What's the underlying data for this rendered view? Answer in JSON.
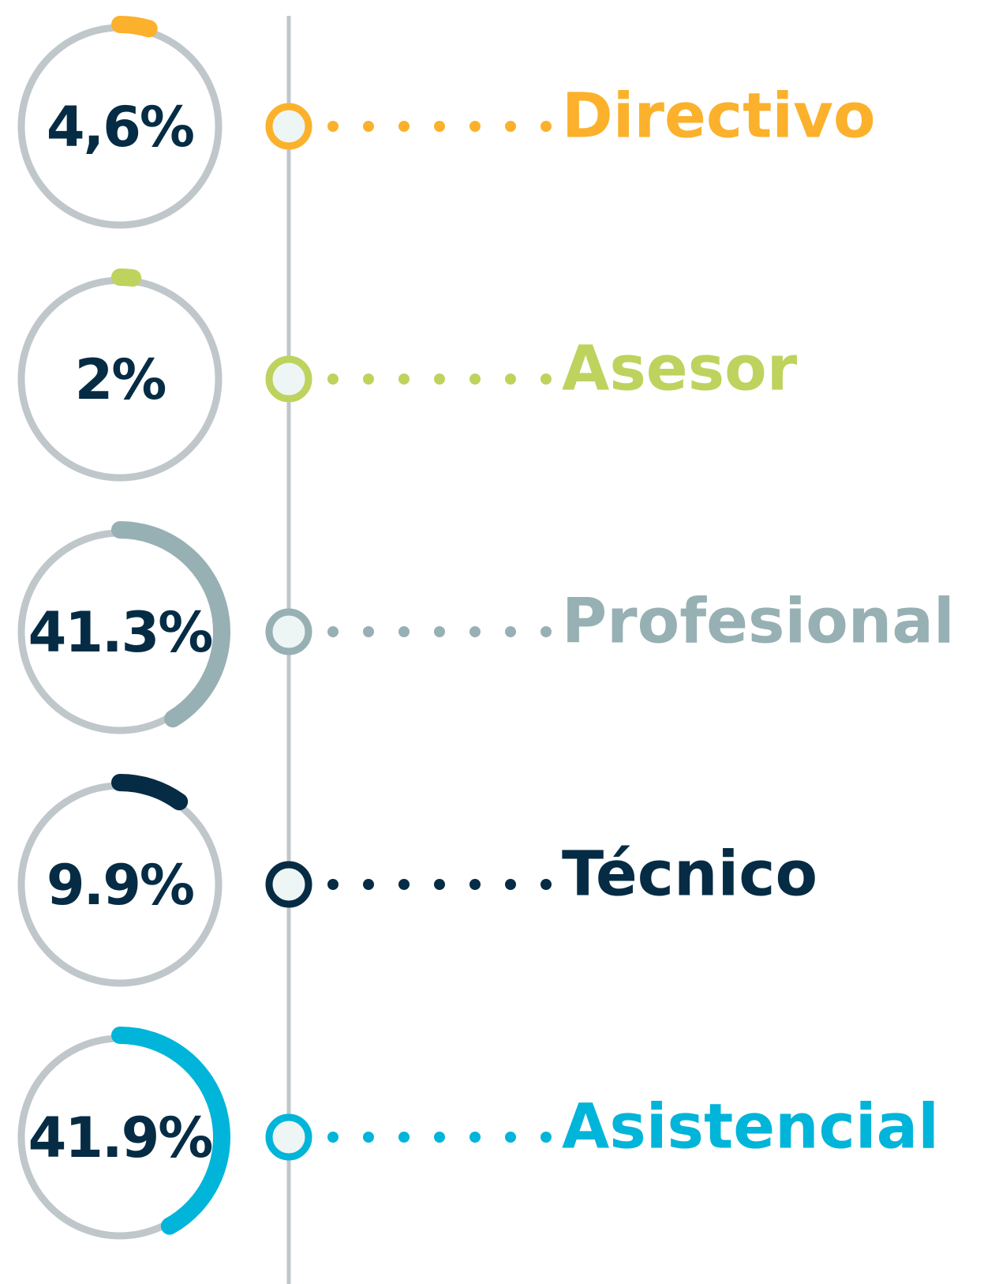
{
  "chart_data": {
    "type": "radial",
    "categories": [
      "Directivo",
      "Asesor",
      "Profesional",
      "Técnico",
      "Asistencial"
    ],
    "values": [
      4.6,
      2,
      41.3,
      9.9,
      41.9
    ],
    "value_labels": [
      "4,6%",
      "2%",
      "41.3%",
      "9.9%",
      "41.9%"
    ],
    "colors": [
      "#fbb12b",
      "#bdd35e",
      "#97b0b3",
      "#052c44",
      "#00b5d9"
    ]
  }
}
